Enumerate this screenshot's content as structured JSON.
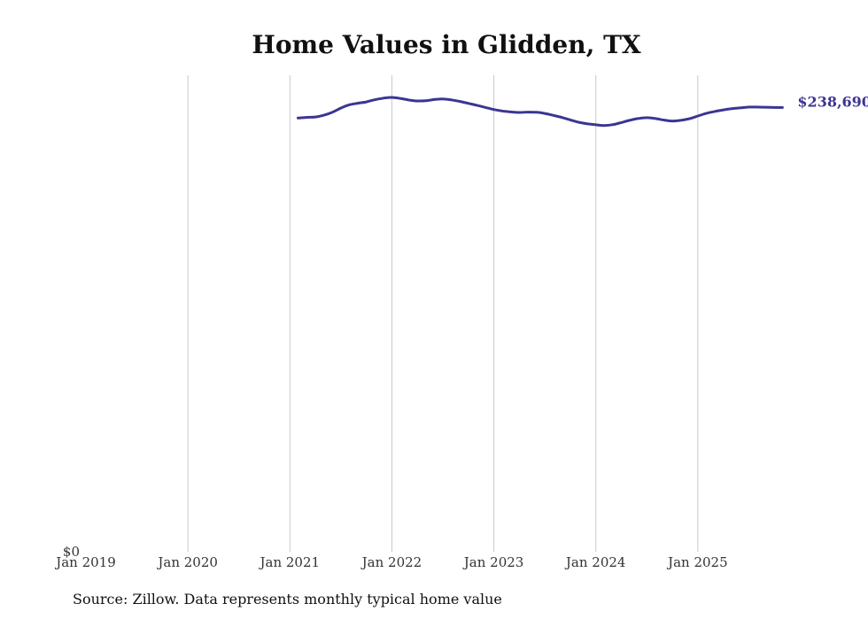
{
  "chart_data": {
    "type": "line",
    "title": "Home Values in Glidden, TX",
    "xlabel": "",
    "ylabel": "",
    "x_ticks": [
      "Jan 2019",
      "Jan 2020",
      "Jan 2021",
      "Jan 2022",
      "Jan 2023",
      "Jan 2024",
      "Jan 2025"
    ],
    "y_ticks": [
      "$0"
    ],
    "ylim": [
      0,
      256000
    ],
    "xlim": [
      2019.0,
      2026.0
    ],
    "grid": "vertical",
    "line_color": "#3b3594",
    "end_label": "$238,690",
    "series": [
      {
        "name": "Typical home value",
        "x": [
          2021.08,
          2021.17,
          2021.25,
          2021.33,
          2021.42,
          2021.5,
          2021.58,
          2021.67,
          2021.75,
          2021.83,
          2021.92,
          2022.0,
          2022.08,
          2022.17,
          2022.25,
          2022.33,
          2022.42,
          2022.5,
          2022.58,
          2022.67,
          2022.75,
          2022.83,
          2022.92,
          2023.0,
          2023.08,
          2023.17,
          2023.25,
          2023.33,
          2023.42,
          2023.5,
          2023.58,
          2023.67,
          2023.75,
          2023.83,
          2023.92,
          2024.0,
          2024.08,
          2024.17,
          2024.25,
          2024.33,
          2024.42,
          2024.5,
          2024.58,
          2024.67,
          2024.75,
          2024.83,
          2024.92,
          2025.0,
          2025.08,
          2025.17,
          2025.25,
          2025.33,
          2025.42,
          2025.5,
          2025.58,
          2025.67,
          2025.75,
          2025.83
        ],
        "values": [
          233000,
          233400,
          233600,
          234500,
          236200,
          238400,
          240100,
          241000,
          241700,
          242800,
          243700,
          244100,
          243600,
          242700,
          242200,
          242300,
          243000,
          243300,
          242800,
          241900,
          240900,
          239900,
          238700,
          237600,
          236800,
          236300,
          236000,
          236200,
          236100,
          235500,
          234500,
          233300,
          232000,
          230800,
          229900,
          229400,
          229000,
          229500,
          230600,
          231800,
          232800,
          233200,
          232800,
          231900,
          231400,
          231800,
          232700,
          234100,
          235500,
          236600,
          237400,
          238000,
          238500,
          238900,
          238900,
          238800,
          238700,
          238690
        ]
      }
    ]
  },
  "footer": {
    "source": "Source: Zillow. Data represents monthly typical home value"
  }
}
